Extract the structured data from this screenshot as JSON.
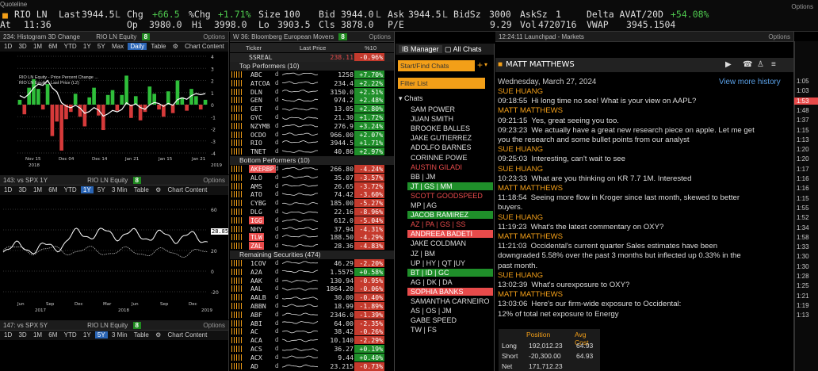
{
  "quote": {
    "window_title": "Quoteline",
    "options": "Options",
    "ticker": "RIO LN",
    "at_label": "At",
    "at_time": "11:36",
    "last_label": "Last",
    "last": "3944.5",
    "l1": "L",
    "chg_label": "Chg",
    "chg": "+66.5",
    "pchg_label": "%Chg",
    "pchg": "+1.71%",
    "op_label": "Op",
    "op": "3980.0",
    "hi_label": "Hi",
    "hi": "3998.0",
    "size_label": "Size",
    "size": "100",
    "lo_label": "Lo",
    "lo": "3903.5",
    "bid_label": "Bid",
    "bid": "3944.0",
    "l2": "L",
    "cls_label": "Cls",
    "cls": "3878.0",
    "ask_label": "Ask",
    "ask": "3944.5",
    "l3": "L",
    "pe_label": "P/E",
    "bidsz_label": "BidSz",
    "bidsz": "3000",
    "bidsz2": "9.29",
    "asksz_label": "AskSz",
    "asksz": "1",
    "vol_label": "Vol",
    "vol": "4720716",
    "delta_label": "Delta AVAT/20D",
    "delta": "+54.08%",
    "vwap_label": "VWAP",
    "vwap": "3945.1504",
    "colors": {
      "up": "#4ec94e",
      "down": "#e84b4b",
      "accent": "#f39f18"
    }
  },
  "hist": {
    "title": "234: Histogram 3D Change",
    "badge_label": "RIO LN Equity",
    "badge": "8",
    "options": "Options",
    "tabs": [
      "1D",
      "3D",
      "1M",
      "6M",
      "YTD",
      "1Y",
      "5Y",
      "Max"
    ],
    "selected_tab": "Daily",
    "table_label": "Table",
    "content_label": "Chart Content",
    "legend1": "RIO LN Equity - Price Percent Change ...",
    "legend2": "RIO LN Equity - Last Price (L2)",
    "yticks": [
      "4",
      "3",
      "2",
      "1",
      "0",
      "-1",
      "-2",
      "-3",
      "-4"
    ],
    "xticks": [
      "Nov 15",
      "Dec 04",
      "Dec 14",
      "Jan 21",
      "Jan 15",
      "Jan 21"
    ],
    "xyears": [
      "2018",
      "",
      "2019",
      ""
    ]
  },
  "spx": {
    "title": "143: vs SPX 1Y",
    "badge_label": "RIO LN Equity",
    "badge": "8",
    "options": "Options",
    "tabs": [
      "1D",
      "3D",
      "1M",
      "6M",
      "YTD",
      "1Y",
      "5Y",
      "3 Min",
      "Table"
    ],
    "selected_tab": "1Y",
    "content_label": "Chart Content",
    "yticks": [
      "60",
      "40",
      "20",
      "0",
      "-20"
    ],
    "xticks": [
      "Jun",
      "Sep",
      "Dec",
      "Mar",
      "Jun",
      "Sep",
      "Dec"
    ],
    "xyears": [
      "2017",
      "2018",
      "2019"
    ],
    "lastvalue": "28.85"
  },
  "spx2": {
    "title": "147: vs SPX 5Y",
    "badge_label": "RIO LN Equity",
    "badge": "8",
    "options": "Options",
    "tabs": [
      "1D",
      "3D",
      "1M",
      "6M",
      "YTD",
      "1Y",
      "5Y",
      "3 Min",
      "Table"
    ],
    "selected_tab": "5Y",
    "content_label": "Chart Content"
  },
  "movers": {
    "title": "W 36: Bloomberg European Movers",
    "badge": "8",
    "options": "Options",
    "headers": {
      "ticker": "Ticker",
      "last": "Last Price",
      "pct": "%10"
    },
    "index": {
      "ticker": "SSREAL",
      "price": "238.11",
      "chg": "-0.96%"
    },
    "top_label": "Top Performers (10)",
    "top": [
      {
        "t": "ABC",
        "p": "1258",
        "c": "+7.70%"
      },
      {
        "t": "ATCOA",
        "p": "234.4",
        "c": "+2.22%"
      },
      {
        "t": "DLN",
        "p": "3150.0",
        "c": "+2.51%"
      },
      {
        "t": "GEN",
        "p": "974.2",
        "c": "+2.48%"
      },
      {
        "t": "GET",
        "p": "13.05",
        "c": "+2.80%"
      },
      {
        "t": "GYC",
        "p": "21.30",
        "c": "+1.72%"
      },
      {
        "t": "NZYMB",
        "p": "276.9",
        "c": "+3.24%"
      },
      {
        "t": "OCDO",
        "p": "966.00",
        "c": "+2.07%"
      },
      {
        "t": "RIO",
        "p": "3944.5",
        "c": "+1.71%"
      },
      {
        "t": "TNET",
        "p": "40.86",
        "c": "+2.97%"
      }
    ],
    "bottom_label": "Bottom Performers (10)",
    "bottom": [
      {
        "t": "AKERBP",
        "p": "266.80",
        "c": "-4.24%",
        "hl": true
      },
      {
        "t": "ALO",
        "p": "35.07",
        "c": "-3.57%"
      },
      {
        "t": "AMS",
        "p": "26.65",
        "c": "-3.72%"
      },
      {
        "t": "ATO",
        "p": "74.42",
        "c": "-3.60%"
      },
      {
        "t": "CYBG",
        "p": "185.00",
        "c": "-5.27%"
      },
      {
        "t": "DLG",
        "p": "22.16",
        "c": "-8.96%"
      },
      {
        "t": "IGG",
        "p": "612.0",
        "c": "-5.04%",
        "hl": true
      },
      {
        "t": "NHY",
        "p": "37.94",
        "c": "-4.31%"
      },
      {
        "t": "TLW",
        "p": "188.50",
        "c": "-4.29%",
        "hl": true
      },
      {
        "t": "ZAL",
        "p": "28.36",
        "c": "-4.83%",
        "hl": true
      }
    ],
    "remaining_label": "Remaining Securities (474)",
    "remaining": [
      {
        "t": "1COV",
        "p": "46.29",
        "c": "-2.20%"
      },
      {
        "t": "A2A",
        "p": "1.5575",
        "c": "+0.58%"
      },
      {
        "t": "AAK",
        "p": "130.94",
        "c": "-0.95%"
      },
      {
        "t": "AAL",
        "p": "1864.20",
        "c": "-0.06%"
      },
      {
        "t": "AALB",
        "p": "30.00",
        "c": "-0.40%"
      },
      {
        "t": "ABBN",
        "p": "18.99",
        "c": "-1.89%"
      },
      {
        "t": "ABF",
        "p": "2346.0",
        "c": "-1.39%"
      },
      {
        "t": "ABI",
        "p": "64.00",
        "c": "-2.35%"
      },
      {
        "t": "AC",
        "p": "38.42",
        "c": "-0.26%"
      },
      {
        "t": "ACA",
        "p": "10.140",
        "c": "-2.29%"
      },
      {
        "t": "ACS",
        "p": "36.27",
        "c": "+0.19%"
      },
      {
        "t": "ACX",
        "p": "9.44",
        "c": "+0.40%"
      },
      {
        "t": "AD",
        "p": "23.215",
        "c": "-0.73%"
      },
      {
        "t": "ADEN",
        "p": "50.24",
        "c": "-0.55%"
      }
    ]
  },
  "ib": {
    "tab_manager": "IB Manager",
    "tab_all": "All Chats",
    "start_placeholder": "Start/Find Chats",
    "filter_placeholder": "Filter List",
    "chats_label": "Chats",
    "chats": [
      {
        "n": "SAM POWER",
        "s": ""
      },
      {
        "n": "JUAN SMITH",
        "s": ""
      },
      {
        "n": "BROOKE BALLES",
        "s": ""
      },
      {
        "n": "JAKE GUTIERREZ",
        "s": ""
      },
      {
        "n": "ADOLFO BARNES",
        "s": ""
      },
      {
        "n": "CORINNE POWE",
        "s": ""
      },
      {
        "n": "AUSTIN GILADI",
        "s": "red-text"
      },
      {
        "n": "BB | JM",
        "s": ""
      },
      {
        "n": "JT | GS | MM",
        "s": "green"
      },
      {
        "n": "SCOTT GOODSPEED",
        "s": "red-text"
      },
      {
        "n": "MP | AG",
        "s": ""
      },
      {
        "n": "JACOB RAMIREZ",
        "s": "green"
      },
      {
        "n": "AZ | PA | GS | SS",
        "s": "red-text"
      },
      {
        "n": "ANDREEA BADETI",
        "s": "red"
      },
      {
        "n": "JAKE COLDMAN",
        "s": ""
      },
      {
        "n": "JZ | BM",
        "s": ""
      },
      {
        "n": "UP | HY | QT |UY",
        "s": ""
      },
      {
        "n": "BT | ID | GC",
        "s": "green"
      },
      {
        "n": "AG | DK | DA",
        "s": ""
      },
      {
        "n": "SOPHIA BANKS",
        "s": "red"
      },
      {
        "n": "SAMANTHA CARNEIRO",
        "s": ""
      },
      {
        "n": "AS | OS | JM",
        "s": ""
      },
      {
        "n": "GABE SPEED",
        "s": ""
      },
      {
        "n": "TW | FS",
        "s": ""
      }
    ]
  },
  "chat": {
    "window_title": "12:24:11 Launchpad - Markets",
    "options": "Options",
    "contact": "MATT MATTHEWS",
    "date": "Wednesday, March 27, 2024",
    "more_history": "View more history",
    "lines": [
      {
        "k": "name",
        "v": "SUE HUANG"
      },
      {
        "k": "msg",
        "t": "09:18:55",
        "v": "Hi long time no see! What is your view on AAPL?"
      },
      {
        "k": "name",
        "v": "MATT MATTHEWS"
      },
      {
        "k": "msg",
        "t": "09:21:15",
        "v": "Yes, great seeing you too."
      },
      {
        "k": "msg",
        "t": "09:23:23",
        "v": "We actually have a great new research piece on apple. Let me get"
      },
      {
        "k": "cont",
        "v": "you the research and some bullet points from our analyst"
      },
      {
        "k": "name",
        "v": "SUE HUANG"
      },
      {
        "k": "msg",
        "t": "09:25:03",
        "v": "Interesting, can't wait to see"
      },
      {
        "k": "name",
        "v": "SUE HUANG"
      },
      {
        "k": "msg",
        "t": "10:23:33",
        "v": "What are you thinking on KR 7.7 1M. Interested"
      },
      {
        "k": "name",
        "v": "MATT MATTHEWS"
      },
      {
        "k": "msg",
        "t": "11:18:54",
        "v": "Seeing more flow in Kroger since last month, skewed to better"
      },
      {
        "k": "cont",
        "v": "buyers."
      },
      {
        "k": "name",
        "v": "SUE HUANG"
      },
      {
        "k": "msg",
        "t": "11:19:23",
        "v": "What's the latest commentary on OXY?"
      },
      {
        "k": "name",
        "v": "MATT MATTHEWS"
      },
      {
        "k": "msg",
        "t": "11:21:03",
        "v": "Occidental's current quarter Sales estimates have been"
      },
      {
        "k": "cont",
        "v": "downgraded 5.58% over the past 3 months but inflected up 0.33% in the"
      },
      {
        "k": "cont",
        "v": "past month."
      },
      {
        "k": "name",
        "v": "SUE HUANG"
      },
      {
        "k": "msg",
        "t": "13:02:39",
        "v": "What's ourexposure to OXY?"
      },
      {
        "k": "name",
        "v": "MATT MATTHEWS"
      },
      {
        "k": "msg",
        "t": "13:03:06",
        "v": "Here's our firm-wide exposure to Occidental:"
      },
      {
        "k": "cont",
        "v": "12% of total net exposure to Energy"
      }
    ],
    "table": {
      "headers": [
        "",
        "Position",
        "Avg Cost"
      ],
      "rows": [
        [
          "Long",
          "192,012.23",
          "64.93"
        ],
        [
          "Short",
          "-20,300.00",
          "64.93"
        ],
        [
          "Net",
          "171,712.23",
          ""
        ]
      ]
    }
  },
  "strip": {
    "times": [
      "1:05",
      "1:03",
      "1:53",
      "1:48",
      "1:37",
      "1:15",
      "1:13",
      "1:20",
      "1:20",
      "1:17",
      "1:16",
      "1:16",
      "1:15",
      "1:55",
      "1:52",
      "1:34",
      "1:58",
      "1:33",
      "1:30",
      "1:30",
      "1:28",
      "1:25",
      "1:21",
      "1:19",
      "1:13"
    ]
  }
}
